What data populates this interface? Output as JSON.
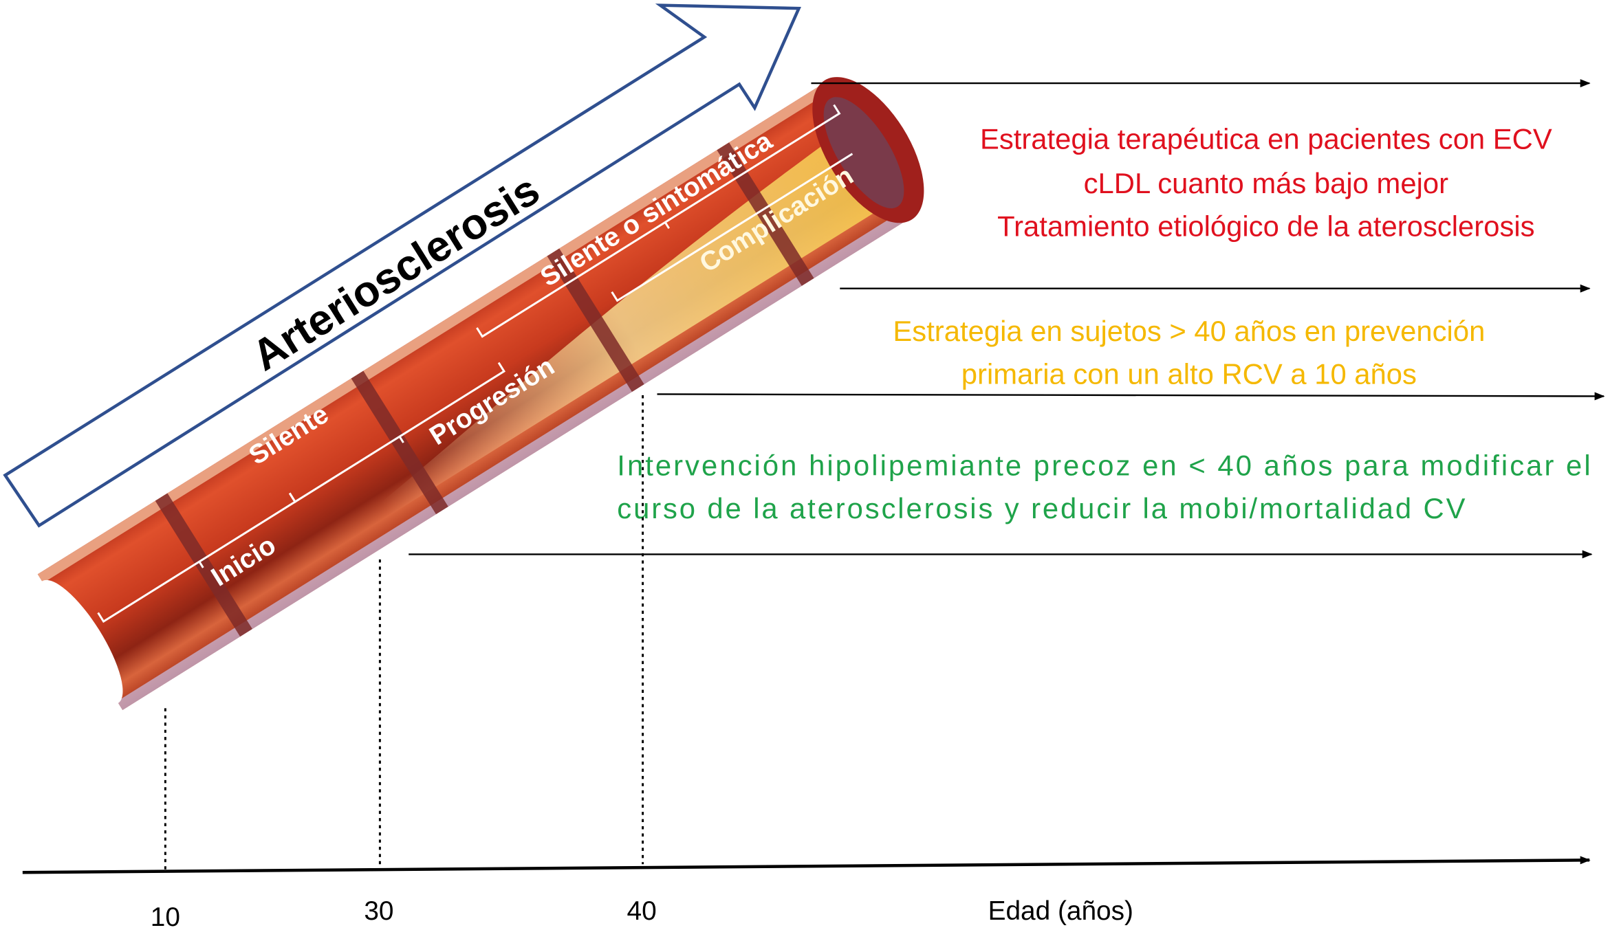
{
  "main_arrow": {
    "label": "Arteriosclerosis",
    "outline_color": "#2f4f8f"
  },
  "vessel_labels": {
    "silente": "Silente",
    "inicio": "Inicio",
    "progresion": "Progresión",
    "silente_o_sintomatica": "Silente o sintomática",
    "complicacion": "Complicación"
  },
  "strategies": {
    "red": {
      "color": "#e0101e",
      "lines": [
        "Estrategia terapéutica en pacientes con ECV",
        "cLDL cuanto más bajo mejor",
        "Tratamiento etiológico de la aterosclerosis"
      ]
    },
    "yellow": {
      "color": "#f5b800",
      "lines": [
        "Estrategia en sujetos > 40 años en prevención",
        "primaria con un alto RCV a 10 años"
      ]
    },
    "green": {
      "color": "#1fa34a",
      "lines": [
        "Intervención hipolipemiante precoz en < 40 años para modificar el",
        "curso de la aterosclerosis y reducir la mobi/mortalidad CV"
      ]
    }
  },
  "axis": {
    "ticks": [
      "10",
      "30",
      "40"
    ],
    "label": "Edad (años)"
  }
}
